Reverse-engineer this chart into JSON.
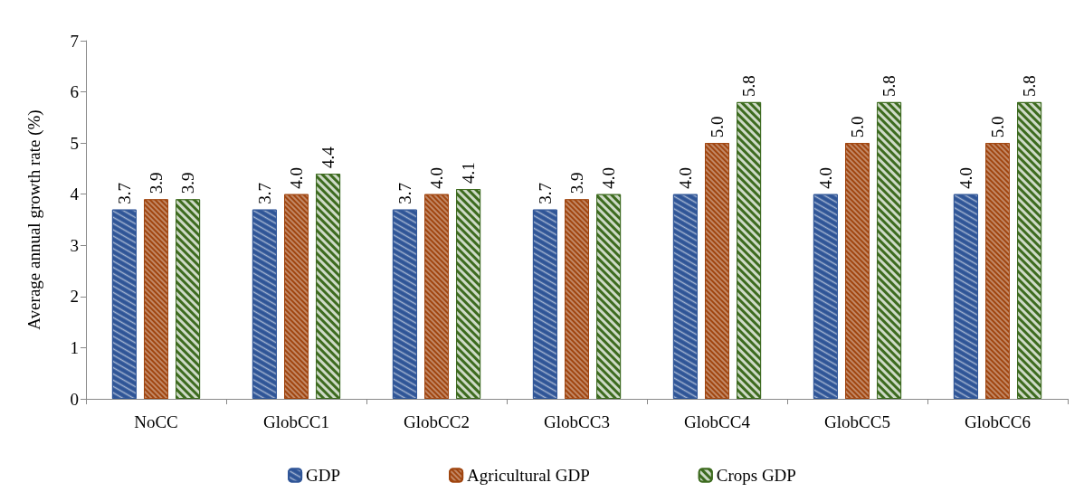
{
  "chart_data": {
    "type": "bar",
    "ylabel": "Average annual growth rate (%)",
    "categories": [
      "NoCC",
      "GlobCC1",
      "GlobCC2",
      "GlobCC3",
      "GlobCC4",
      "GlobCC5",
      "GlobCC6"
    ],
    "series": [
      {
        "name": "GDP",
        "color": "#2f5597",
        "values": [
          3.7,
          3.7,
          3.7,
          3.7,
          4.0,
          4.0,
          4.0
        ],
        "value_labels": [
          "3.7",
          "3.7",
          "3.7",
          "3.7",
          "4.0",
          "4.0",
          "4.0"
        ]
      },
      {
        "name": "Agricultural GDP",
        "color": "#a0450f",
        "values": [
          3.9,
          4.0,
          4.0,
          3.9,
          5.0,
          5.0,
          5.0
        ],
        "value_labels": [
          "3.9",
          "4.0",
          "4.0",
          "3.9",
          "5.0",
          "5.0",
          "5.0"
        ]
      },
      {
        "name": "Crops GDP",
        "color": "#3d6b1f",
        "values": [
          3.9,
          4.4,
          4.1,
          4.0,
          5.8,
          5.8,
          5.8
        ],
        "value_labels": [
          "3.9",
          "4.4",
          "4.1",
          "4.0",
          "5.8",
          "5.8",
          "5.8"
        ]
      }
    ],
    "ylim": [
      0,
      7
    ],
    "yticks": [
      0,
      1,
      2,
      3,
      4,
      5,
      6,
      7
    ],
    "grid": false,
    "legend": "bottom"
  }
}
